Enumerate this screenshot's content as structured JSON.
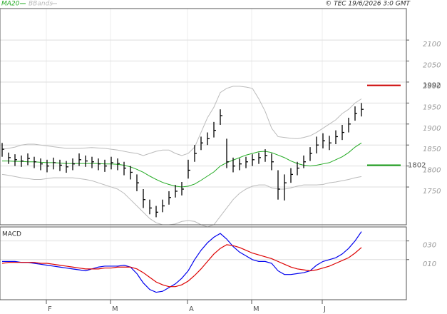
{
  "source": "© TEC 19/6/2026 3:0 GMT",
  "chart_data": [
    {
      "type": "ohlc",
      "categories": [
        null,
        null,
        null,
        null,
        null,
        null,
        null,
        "F",
        null,
        null,
        null,
        null,
        null,
        null,
        null,
        null,
        null,
        "M",
        null,
        null,
        null,
        null,
        null,
        null,
        null,
        null,
        null,
        null,
        null,
        "A",
        null,
        null,
        null,
        null,
        null,
        null,
        null,
        null,
        null,
        "M",
        null,
        null,
        null,
        null,
        null,
        null,
        null,
        null,
        null,
        null,
        "J",
        null,
        null,
        null,
        null,
        null,
        null
      ],
      "bar_color": "#000000",
      "high": [
        1855,
        1832,
        1828,
        1825,
        1830,
        1822,
        1818,
        1815,
        1820,
        1815,
        1812,
        1818,
        1830,
        1825,
        1822,
        1818,
        1815,
        1822,
        1818,
        1810,
        1800,
        1780,
        1745,
        1720,
        1705,
        1720,
        1740,
        1755,
        1762,
        1815,
        1850,
        1870,
        1880,
        1905,
        1935,
        1865,
        1820,
        1818,
        1822,
        1828,
        1832,
        1840,
        1830,
        1790,
        1780,
        1795,
        1810,
        1825,
        1845,
        1870,
        1878,
        1872,
        1885,
        1898,
        1915,
        1942,
        1950
      ],
      "low": [
        1822,
        1805,
        1800,
        1798,
        1802,
        1795,
        1790,
        1785,
        1792,
        1788,
        1784,
        1790,
        1800,
        1798,
        1795,
        1790,
        1786,
        1792,
        1790,
        1778,
        1768,
        1740,
        1700,
        1685,
        1678,
        1690,
        1708,
        1725,
        1730,
        1770,
        1810,
        1838,
        1850,
        1868,
        1898,
        1795,
        1785,
        1790,
        1795,
        1800,
        1805,
        1810,
        1790,
        1720,
        1718,
        1760,
        1778,
        1795,
        1812,
        1830,
        1842,
        1838,
        1852,
        1862,
        1880,
        1908,
        1918
      ],
      "close": [
        1840,
        1820,
        1815,
        1812,
        1818,
        1810,
        1805,
        1800,
        1808,
        1802,
        1798,
        1805,
        1815,
        1812,
        1810,
        1805,
        1800,
        1808,
        1806,
        1795,
        1785,
        1760,
        1720,
        1700,
        1690,
        1705,
        1725,
        1740,
        1745,
        1790,
        1830,
        1855,
        1865,
        1885,
        1920,
        1810,
        1800,
        1805,
        1810,
        1815,
        1820,
        1825,
        1810,
        1745,
        1760,
        1780,
        1795,
        1810,
        1830,
        1850,
        1860,
        1855,
        1870,
        1880,
        1900,
        1925,
        1935
      ],
      "series": [
        {
          "name": "MA20",
          "color": "#22aa22",
          "values": [
            1812,
            1812,
            1811,
            1811,
            1810,
            1810,
            1809,
            1808,
            1808,
            1807,
            1806,
            1806,
            1806,
            1806,
            1806,
            1806,
            1805,
            1805,
            1804,
            1802,
            1798,
            1792,
            1785,
            1776,
            1768,
            1761,
            1756,
            1752,
            1750,
            1752,
            1757,
            1766,
            1776,
            1786,
            1800,
            1808,
            1814,
            1820,
            1826,
            1830,
            1834,
            1835,
            1832,
            1826,
            1820,
            1812,
            1806,
            1802,
            1800,
            1802,
            1805,
            1808,
            1815,
            1822,
            1832,
            1845,
            1855
          ]
        },
        {
          "name": "BBands",
          "color": "#bbbbbb",
          "upper": [
            1840,
            1842,
            1845,
            1850,
            1852,
            1852,
            1850,
            1848,
            1846,
            1844,
            1842,
            1842,
            1842,
            1843,
            1844,
            1843,
            1842,
            1840,
            1838,
            1835,
            1832,
            1830,
            1825,
            1830,
            1835,
            1838,
            1838,
            1830,
            1825,
            1830,
            1845,
            1880,
            1915,
            1940,
            1975,
            1985,
            1990,
            1990,
            1988,
            1985,
            1960,
            1930,
            1890,
            1870,
            1868,
            1866,
            1865,
            1868,
            1872,
            1880,
            1890,
            1900,
            1910,
            1925,
            1935,
            1950,
            1960
          ],
          "lower": [
            1780,
            1778,
            1775,
            1772,
            1770,
            1768,
            1768,
            1770,
            1772,
            1772,
            1772,
            1772,
            1770,
            1768,
            1765,
            1760,
            1755,
            1750,
            1745,
            1735,
            1720,
            1705,
            1690,
            1675,
            1665,
            1660,
            1660,
            1662,
            1668,
            1670,
            1668,
            1660,
            1655,
            1660,
            1680,
            1700,
            1720,
            1735,
            1745,
            1752,
            1755,
            1755,
            1748,
            1745,
            1745,
            1748,
            1752,
            1755,
            1755,
            1755,
            1756,
            1760,
            1762,
            1765,
            1768,
            1772,
            1775
          ]
        }
      ],
      "markers": [
        {
          "value": 1992,
          "color": "#cc0000"
        },
        {
          "value": 1802,
          "color": "#119911"
        }
      ],
      "ylim": [
        1660,
        2175
      ],
      "yticks": [
        1750,
        1800,
        1850,
        1900,
        1950,
        2000,
        2050,
        2100
      ],
      "grid": true
    },
    {
      "type": "line",
      "title": "MACD",
      "series": [
        {
          "color": "#0000ee",
          "values": [
            8,
            8,
            8,
            7,
            7,
            6,
            5,
            4,
            3,
            2,
            1,
            0,
            -1,
            -2,
            0,
            2,
            3,
            3,
            3,
            4,
            2,
            -5,
            -15,
            -22,
            -25,
            -24,
            -20,
            -16,
            -10,
            -2,
            10,
            20,
            28,
            34,
            38,
            32,
            24,
            18,
            14,
            10,
            8,
            8,
            6,
            -2,
            -6,
            -6,
            -5,
            -4,
            -2,
            4,
            8,
            10,
            12,
            16,
            22,
            30,
            40
          ]
        },
        {
          "color": "#dd0000",
          "values": [
            6,
            7,
            7,
            7,
            7,
            7,
            6,
            6,
            5,
            4,
            3,
            2,
            1,
            0,
            0,
            0,
            1,
            1,
            2,
            2,
            2,
            0,
            -4,
            -9,
            -14,
            -17,
            -19,
            -19,
            -17,
            -13,
            -7,
            0,
            8,
            16,
            22,
            26,
            25,
            23,
            20,
            17,
            15,
            13,
            11,
            8,
            5,
            2,
            0,
            -1,
            -2,
            -1,
            1,
            3,
            6,
            9,
            12,
            17,
            23
          ]
        }
      ],
      "ylim": [
        -33,
        45
      ],
      "yticks": [
        {
          "value": 10,
          "label": "010"
        },
        {
          "value": 30,
          "label": "030"
        }
      ],
      "grid": true
    }
  ]
}
